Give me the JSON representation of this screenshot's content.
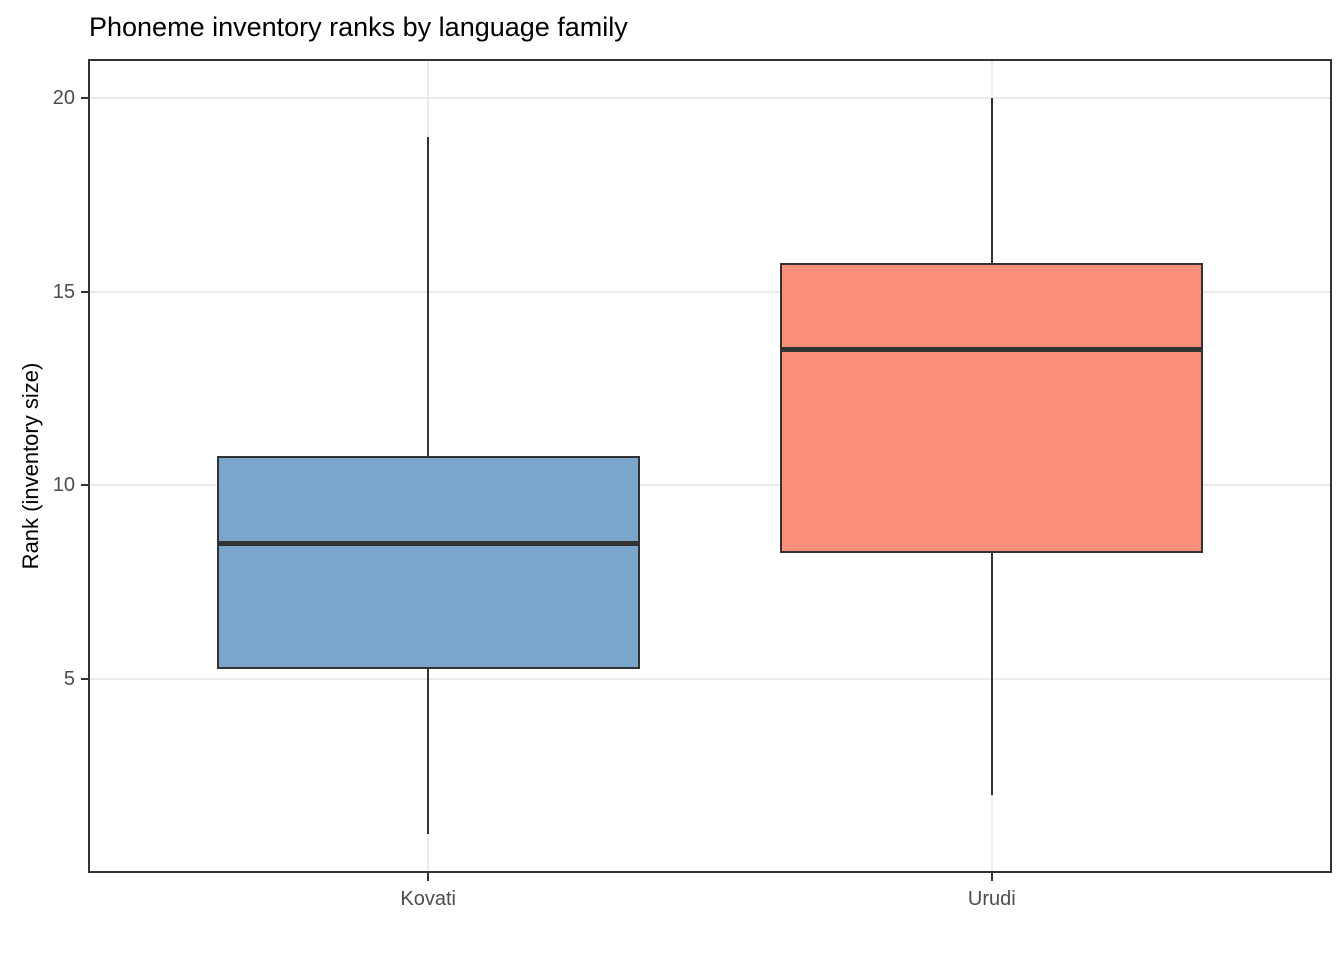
{
  "chart_data": {
    "type": "boxplot",
    "title": "Phoneme inventory ranks by language family",
    "xlabel": "",
    "ylabel": "Rank (inventory size)",
    "categories": [
      "Kovati",
      "Urudi"
    ],
    "y_ticks": [
      5,
      10,
      15,
      20
    ],
    "ylim": [
      0.05,
      20.95
    ],
    "grid": "major horizontal lines at y ticks, vertical line at each category",
    "legend": "none",
    "series": [
      {
        "name": "Kovati",
        "min": 1,
        "q1": 5.25,
        "median": 8.5,
        "q3": 10.75,
        "max": 19,
        "fill": "#7BA6CB"
      },
      {
        "name": "Urudi",
        "min": 2,
        "q1": 8.25,
        "median": 13.5,
        "q3": 15.75,
        "max": 20,
        "fill": "#FC8F7A"
      }
    ],
    "colors": {
      "box_stroke": "#333333",
      "median": "#333333",
      "whisker": "#333333",
      "gridline": "#EBEBEB",
      "panel_border": "#333333",
      "tick_label": "#4D4D4D",
      "title": "#000000",
      "background": "#FFFFFF"
    }
  }
}
